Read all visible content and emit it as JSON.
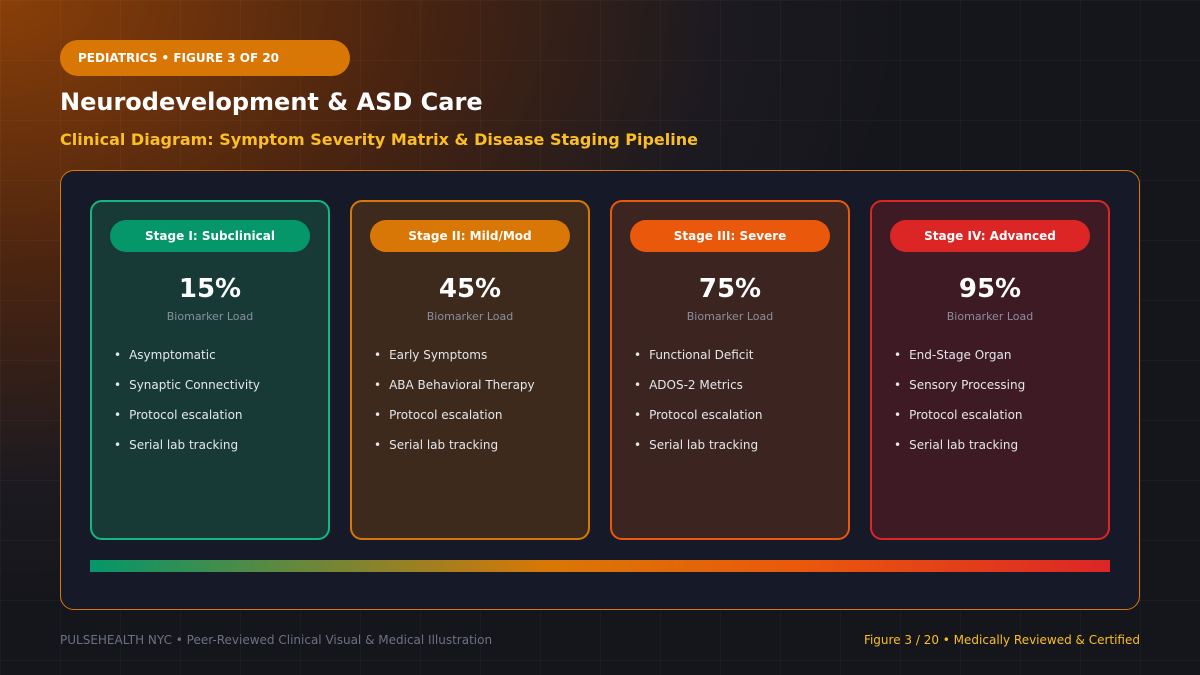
{
  "header": {
    "tag": "PEDIATRICS • FIGURE 3 OF 20",
    "title": "Neurodevelopment & ASD Care",
    "subtitle": "Clinical Diagram: Symptom Severity Matrix & Disease Staging Pipeline"
  },
  "stages": [
    {
      "label": "Stage I: Subclinical",
      "value": "15%",
      "caption": "Biomarker Load",
      "items": [
        "Asymptomatic",
        "Synaptic Connectivity",
        "Protocol escalation",
        "Serial lab tracking"
      ]
    },
    {
      "label": "Stage II: Mild/Mod",
      "value": "45%",
      "caption": "Biomarker Load",
      "items": [
        "Early Symptoms",
        "ABA Behavioral Therapy",
        "Protocol escalation",
        "Serial lab tracking"
      ]
    },
    {
      "label": "Stage III: Severe",
      "value": "75%",
      "caption": "Biomarker Load",
      "items": [
        "Functional Deficit",
        "ADOS-2 Metrics",
        "Protocol escalation",
        "Serial lab tracking"
      ]
    },
    {
      "label": "Stage IV: Advanced",
      "value": "95%",
      "caption": "Biomarker Load",
      "items": [
        "End-Stage Organ",
        "Sensory Processing",
        "Protocol escalation",
        "Serial lab tracking"
      ]
    }
  ],
  "footer": {
    "left": "PULSEHEALTH NYC • Peer-Reviewed Clinical Visual & Medical Illustration",
    "right": "Figure 3 / 20 • Medically Reviewed & Certified"
  }
}
